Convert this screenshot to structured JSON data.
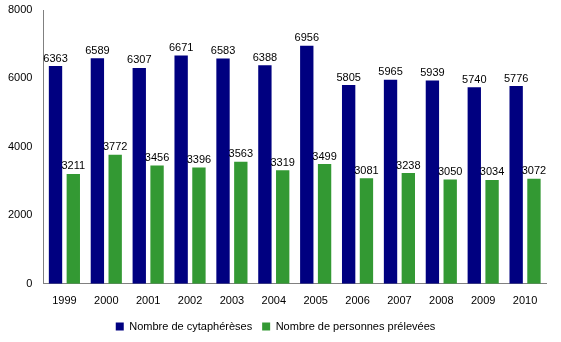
{
  "chart_data": {
    "type": "bar",
    "categories": [
      "1999",
      "2000",
      "2001",
      "2002",
      "2003",
      "2004",
      "2005",
      "2006",
      "2007",
      "2008",
      "2009",
      "2010"
    ],
    "series": [
      {
        "name": "Nombre de cytaphérèses",
        "color": "#000080",
        "values": [
          6363,
          6589,
          6307,
          6671,
          6583,
          6388,
          6956,
          5805,
          5965,
          5939,
          5740,
          5776
        ]
      },
      {
        "name": "Nombre de personnes prélevées",
        "color": "#339933",
        "values": [
          3211,
          3772,
          3456,
          3396,
          3563,
          3319,
          3499,
          3081,
          3238,
          3050,
          3034,
          3072
        ]
      }
    ],
    "ylim": [
      0,
      8000
    ],
    "yticks": [
      0,
      2000,
      4000,
      6000,
      8000
    ],
    "grid": false,
    "legend": "bottom",
    "data_labels": true
  }
}
